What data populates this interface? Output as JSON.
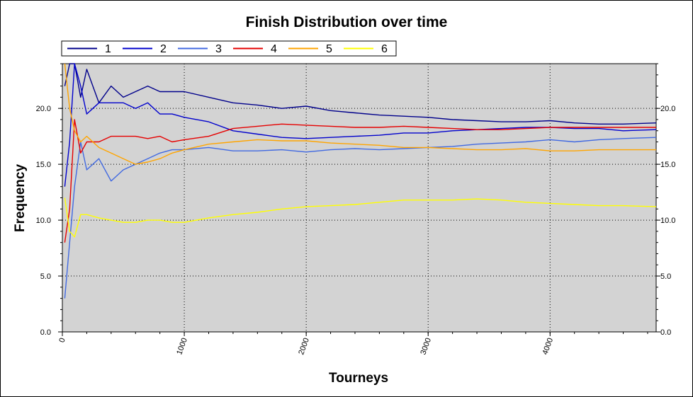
{
  "chart_data": {
    "type": "line",
    "title": "Finish Distribution over time",
    "xlabel": "Tourneys",
    "ylabel": "Frequency",
    "xlim": [
      0,
      4870
    ],
    "ylim": [
      0,
      24
    ],
    "x_ticks": [
      "0",
      "1000",
      "2000",
      "3000",
      "4000"
    ],
    "y_ticks": [
      "0.0",
      "5.0",
      "10.0",
      "15.0",
      "20.0"
    ],
    "grid": true,
    "legend_position": "top-left",
    "plot_background": "#d3d3d3",
    "series": [
      {
        "name": "1",
        "color": "#00008b",
        "x": [
          20,
          60,
          100,
          150,
          200,
          300,
          400,
          500,
          600,
          700,
          800,
          900,
          1000,
          1200,
          1400,
          1600,
          1800,
          2000,
          2200,
          2400,
          2600,
          2800,
          3000,
          3200,
          3400,
          3600,
          3800,
          4000,
          4200,
          4400,
          4600,
          4870
        ],
        "y": [
          22,
          24,
          24,
          21,
          23.5,
          20.5,
          22,
          21,
          21.5,
          22,
          21.5,
          21.5,
          21.5,
          21,
          20.5,
          20.3,
          20,
          20.2,
          19.8,
          19.6,
          19.4,
          19.3,
          19.2,
          19.0,
          18.9,
          18.8,
          18.8,
          18.9,
          18.7,
          18.6,
          18.6,
          18.7
        ]
      },
      {
        "name": "2",
        "color": "#0000cd",
        "x": [
          20,
          60,
          100,
          150,
          200,
          300,
          400,
          500,
          600,
          700,
          800,
          900,
          1000,
          1200,
          1400,
          1600,
          1800,
          2000,
          2200,
          2400,
          2600,
          2800,
          3000,
          3200,
          3400,
          3600,
          3800,
          4000,
          4200,
          4400,
          4600,
          4870
        ],
        "y": [
          13,
          17,
          24,
          22,
          19.5,
          20.5,
          20.5,
          20.5,
          20,
          20.5,
          19.5,
          19.5,
          19.2,
          18.8,
          18,
          17.7,
          17.4,
          17.3,
          17.4,
          17.5,
          17.6,
          17.8,
          17.8,
          18.0,
          18.1,
          18.2,
          18.3,
          18.3,
          18.2,
          18.2,
          18.0,
          18.1
        ]
      },
      {
        "name": "3",
        "color": "#4169e1",
        "x": [
          20,
          60,
          100,
          150,
          200,
          300,
          400,
          500,
          600,
          700,
          800,
          900,
          1000,
          1200,
          1400,
          1600,
          1800,
          2000,
          2200,
          2400,
          2600,
          2800,
          3000,
          3200,
          3400,
          3600,
          3800,
          4000,
          4200,
          4400,
          4600,
          4870
        ],
        "y": [
          3,
          8,
          13,
          17,
          14.5,
          15.5,
          13.5,
          14.5,
          15,
          15.5,
          16,
          16.3,
          16.3,
          16.5,
          16.2,
          16.2,
          16.3,
          16.1,
          16.3,
          16.4,
          16.3,
          16.4,
          16.5,
          16.6,
          16.8,
          16.9,
          17.0,
          17.2,
          17.0,
          17.2,
          17.3,
          17.4
        ]
      },
      {
        "name": "4",
        "color": "#e60000",
        "x": [
          20,
          60,
          100,
          150,
          200,
          300,
          400,
          500,
          600,
          700,
          800,
          900,
          1000,
          1200,
          1400,
          1600,
          1800,
          2000,
          2200,
          2400,
          2600,
          2800,
          3000,
          3200,
          3400,
          3600,
          3800,
          4000,
          4200,
          4400,
          4600,
          4870
        ],
        "y": [
          8,
          11,
          19,
          16,
          17,
          17,
          17.5,
          17.5,
          17.5,
          17.3,
          17.5,
          17.0,
          17.2,
          17.5,
          18.2,
          18.4,
          18.6,
          18.5,
          18.4,
          18.3,
          18.3,
          18.4,
          18.3,
          18.2,
          18.1,
          18.1,
          18.2,
          18.3,
          18.3,
          18.3,
          18.3,
          18.3
        ]
      },
      {
        "name": "5",
        "color": "#ffa500",
        "x": [
          20,
          60,
          100,
          150,
          200,
          300,
          400,
          500,
          600,
          700,
          800,
          900,
          1000,
          1200,
          1400,
          1600,
          1800,
          2000,
          2200,
          2400,
          2600,
          2800,
          3000,
          3200,
          3400,
          3600,
          3800,
          4000,
          4200,
          4400,
          4600,
          4870
        ],
        "y": [
          24,
          20,
          18,
          17,
          17.5,
          16.5,
          16,
          15.5,
          15,
          15.2,
          15.5,
          16,
          16.3,
          16.8,
          17.0,
          17.2,
          17.1,
          17.1,
          16.9,
          16.8,
          16.7,
          16.5,
          16.5,
          16.4,
          16.3,
          16.3,
          16.4,
          16.2,
          16.2,
          16.3,
          16.3,
          16.3
        ]
      },
      {
        "name": "6",
        "color": "#ffff00",
        "x": [
          20,
          60,
          100,
          150,
          200,
          300,
          400,
          500,
          600,
          700,
          800,
          900,
          1000,
          1200,
          1400,
          1600,
          1800,
          2000,
          2200,
          2400,
          2600,
          2800,
          3000,
          3200,
          3400,
          3600,
          3800,
          4000,
          4200,
          4400,
          4600,
          4870
        ],
        "y": [
          12,
          9,
          8.5,
          10.5,
          10.5,
          10.2,
          10.0,
          9.8,
          9.8,
          10.0,
          10.0,
          9.8,
          9.8,
          10.2,
          10.5,
          10.7,
          11.0,
          11.2,
          11.3,
          11.4,
          11.6,
          11.8,
          11.8,
          11.8,
          11.9,
          11.8,
          11.6,
          11.5,
          11.4,
          11.3,
          11.3,
          11.2
        ]
      }
    ]
  }
}
